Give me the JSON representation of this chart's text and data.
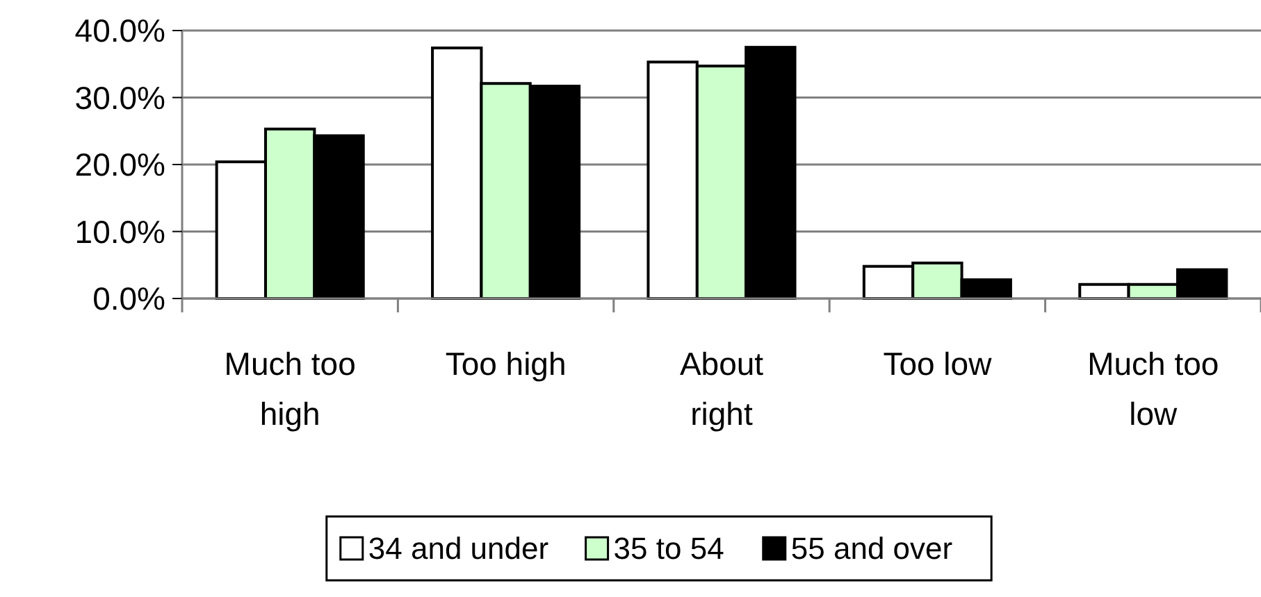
{
  "chart_data": {
    "type": "bar",
    "categories": [
      "Much too high",
      "Too high",
      "About right",
      "Too low",
      "Much too low"
    ],
    "series": [
      {
        "name": "34 and under",
        "color": "#ffffff",
        "values": [
          20.4,
          37.4,
          35.3,
          4.8,
          2.1
        ]
      },
      {
        "name": "35 to 54",
        "color": "#ccffcc",
        "values": [
          25.3,
          32.1,
          34.7,
          5.3,
          2.1
        ]
      },
      {
        "name": "55 and over",
        "color": "#000000",
        "values": [
          24.3,
          31.7,
          37.5,
          2.8,
          4.3
        ]
      }
    ],
    "ylim": [
      0,
      40
    ],
    "yticks": [
      {
        "value": 0,
        "label": "0.0%"
      },
      {
        "value": 10,
        "label": "10.0%"
      },
      {
        "value": 20,
        "label": "20.0%"
      },
      {
        "value": 30,
        "label": "30.0%"
      },
      {
        "value": 40,
        "label": "40.0%"
      }
    ],
    "grid": "y",
    "legend": "bottom"
  }
}
